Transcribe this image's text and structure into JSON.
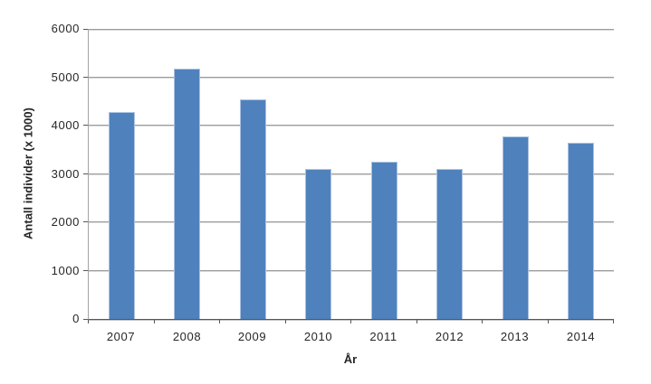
{
  "chart_data": {
    "type": "bar",
    "title": "",
    "xlabel": "År",
    "ylabel": "Antall individer (x 1000)",
    "categories": [
      "2007",
      "2008",
      "2009",
      "2010",
      "2011",
      "2012",
      "2013",
      "2014"
    ],
    "values": [
      4280,
      5180,
      4540,
      3100,
      3250,
      3100,
      3780,
      3650
    ],
    "ylim": [
      0,
      6000
    ],
    "yticks": [
      0,
      1000,
      2000,
      3000,
      4000,
      5000,
      6000
    ],
    "grid": true,
    "legend": "none",
    "colors": {
      "bar_fill": "#4f81bd",
      "bar_border": "#aac2e1",
      "gridline": "#9c9c9c",
      "x_axis_line": "#565656",
      "y_axis_line": "#a3a3a3",
      "text": "#262626"
    }
  }
}
